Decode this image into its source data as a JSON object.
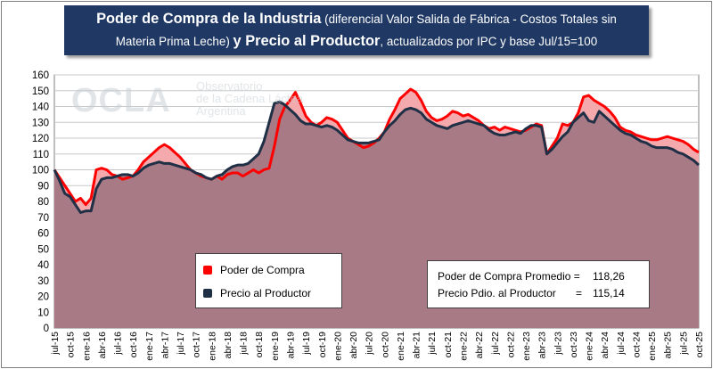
{
  "title": {
    "main_bold": "Poder de Compra de la Industria",
    "main_rest": "(diferencial Valor Salida de Fábrica - Costos Totales sin",
    "line2_start": "Materia Prima Leche)",
    "line2_bold": "y Precio al Productor",
    "line2_rest": ", actualizados por IPC y base Jul/15=100"
  },
  "watermark": {
    "logo": "OCLA",
    "line1": "Observatorio",
    "line2": "de la Cadena Láctea",
    "line3": "Argentina"
  },
  "legend": {
    "item1": "Poder de Compra",
    "item2": "Precio al Productor"
  },
  "stats": {
    "label1": "Poder de Compra Promedio =",
    "value1": "118,26",
    "label2": "Precio Pdio. al Productor",
    "eq2": "=",
    "value2": "115,14"
  },
  "colors": {
    "poder": "#ff0000",
    "poder_fill": "#f4a9ad",
    "precio": "#1f3046",
    "precio_fill": "#a87a85",
    "plot_bg": "#ffffff",
    "grid": "#c8c8c8"
  },
  "chart_data": {
    "type": "area",
    "ylim": [
      0,
      160
    ],
    "yticks": [
      0,
      10,
      20,
      30,
      40,
      50,
      60,
      70,
      80,
      90,
      100,
      110,
      120,
      130,
      140,
      150,
      160
    ],
    "grid": true,
    "legend_position": "lower-left",
    "x_tick_labels": [
      "jul-15",
      "oct-15",
      "ene-16",
      "abr-16",
      "jul-16",
      "oct-16",
      "ene-17",
      "abr-17",
      "jul-17",
      "oct-17",
      "ene-18",
      "abr-18",
      "jul-18",
      "oct-18",
      "ene-19",
      "abr-19",
      "jul-19",
      "oct-19",
      "ene-20",
      "abr-20",
      "jul-20",
      "oct-20",
      "ene-21",
      "abr-21",
      "jul-21",
      "oct-21",
      "ene-22",
      "abr-22",
      "jul-22",
      "oct-22",
      "ene-23",
      "abr-23",
      "jul-23",
      "oct-23",
      "ene-24",
      "abr-24",
      "jul-24",
      "oct-24",
      "ene-25",
      "abr-25",
      "jul-25",
      "oct-25"
    ],
    "series": [
      {
        "name": "Poder de Compra",
        "values": [
          100,
          95,
          90,
          85,
          80,
          82,
          78,
          82,
          100,
          101,
          100,
          97,
          96,
          94,
          95,
          96,
          100,
          105,
          108,
          111,
          114,
          116,
          114,
          111,
          108,
          104,
          100,
          98,
          96,
          95,
          94,
          96,
          94,
          97,
          98,
          98,
          96,
          98,
          100,
          98,
          100,
          101,
          115,
          132,
          140,
          144,
          149,
          142,
          134,
          130,
          128,
          130,
          133,
          132,
          130,
          125,
          120,
          118,
          116,
          114,
          115,
          117,
          120,
          124,
          132,
          138,
          145,
          148,
          151,
          149,
          144,
          137,
          133,
          131,
          132,
          134,
          137,
          136,
          134,
          135,
          133,
          131,
          128,
          126,
          127,
          125,
          127,
          126,
          125,
          124,
          125,
          127,
          129,
          128,
          110,
          115,
          120,
          129,
          128,
          130,
          136,
          146,
          147,
          144,
          142,
          140,
          137,
          133,
          127,
          125,
          124,
          122,
          121,
          120,
          119,
          119,
          120,
          121,
          120,
          119,
          118,
          116,
          113,
          111
        ]
      },
      {
        "name": "Precio al Productor",
        "values": [
          100,
          93,
          85,
          83,
          78,
          73,
          74,
          74,
          88,
          94,
          95,
          95,
          96,
          97,
          97,
          96,
          98,
          101,
          103,
          104,
          105,
          104,
          104,
          103,
          102,
          101,
          100,
          98,
          97,
          95,
          94,
          96,
          97,
          100,
          102,
          103,
          103,
          104,
          107,
          110,
          118,
          130,
          142,
          143,
          141,
          138,
          135,
          131,
          129,
          129,
          128,
          127,
          128,
          127,
          125,
          122,
          119,
          118,
          117,
          117,
          117,
          118,
          119,
          124,
          128,
          131,
          135,
          138,
          139,
          138,
          136,
          132,
          130,
          128,
          127,
          126,
          128,
          129,
          130,
          131,
          130,
          129,
          128,
          125,
          123,
          122,
          122,
          123,
          124,
          123,
          126,
          128,
          128,
          127,
          110,
          113,
          117,
          121,
          124,
          130,
          133,
          136,
          131,
          130,
          137,
          134,
          131,
          128,
          125,
          123,
          122,
          120,
          118,
          117,
          115,
          114,
          114,
          114,
          113,
          111,
          110,
          108,
          106,
          103
        ]
      }
    ]
  }
}
